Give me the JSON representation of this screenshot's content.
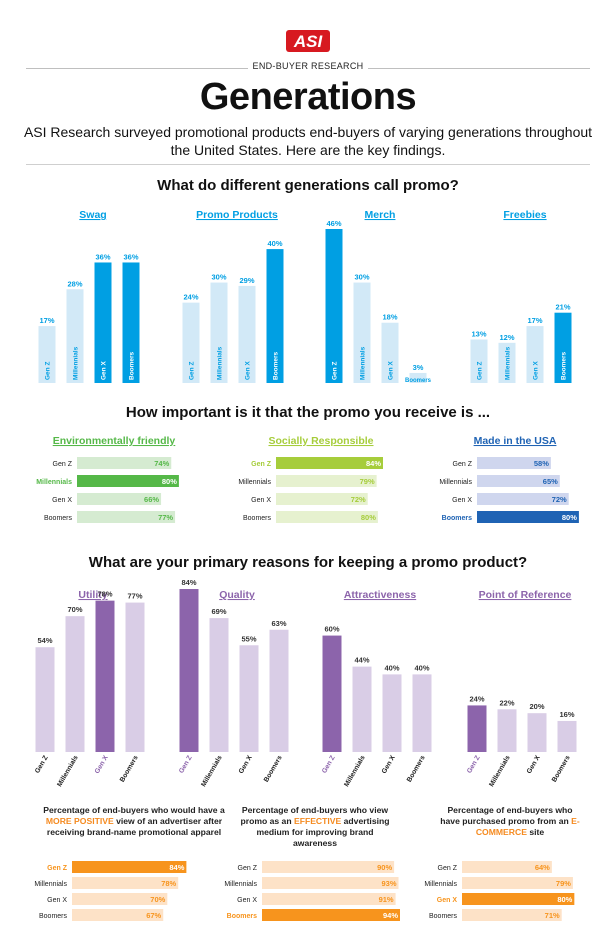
{
  "header": {
    "logo_text": "ASI",
    "eyebrow": "END-BUYER RESEARCH",
    "title": "Generations",
    "subtitle": "ASI Research surveyed promotional products end-buyers of varying generations throughout the United States. Here are the key findings."
  },
  "colors": {
    "cyan": "#009fe3",
    "cyan_light": "#d2e9f7",
    "green": "#55b848",
    "green_light": "#d5ebd1",
    "lime": "#a6cd3b",
    "lime_light": "#e6f1cf",
    "navy": "#1f63b4",
    "navy_light": "#cfd6ee",
    "purple": "#8c64ab",
    "purple_light": "#d9cde6",
    "orange": "#f7941d",
    "orange_light": "#fde2c7",
    "logo_red": "#d71920"
  },
  "chart_data": [
    {
      "type": "bar",
      "title": "What do different generations call promo?",
      "categories": [
        "Gen Z",
        "Millennials",
        "Gen X",
        "Boomers"
      ],
      "groups": [
        {
          "name": "Swag",
          "values": [
            17,
            28,
            36,
            36
          ],
          "highlight": [
            2,
            3
          ]
        },
        {
          "name": "Promo Products",
          "values": [
            24,
            30,
            29,
            40
          ],
          "highlight": [
            3
          ]
        },
        {
          "name": "Merch",
          "values": [
            46,
            30,
            18,
            3
          ],
          "highlight": [
            0
          ]
        },
        {
          "name": "Freebies",
          "values": [
            13,
            12,
            17,
            21
          ],
          "highlight": [
            3
          ]
        }
      ],
      "unit": "%",
      "ylim": [
        0,
        46
      ]
    },
    {
      "type": "bar",
      "orientation": "horizontal",
      "title": "How important is it that the promo you receive is ...",
      "categories": [
        "Gen Z",
        "Millennials",
        "Gen X",
        "Boomers"
      ],
      "groups": [
        {
          "name": "Environmentally friendly",
          "values": [
            74,
            80,
            66,
            77
          ],
          "highlight": [
            1
          ],
          "color": "green"
        },
        {
          "name": "Socially Responsible",
          "values": [
            84,
            79,
            72,
            80
          ],
          "highlight": [
            0
          ],
          "color": "lime"
        },
        {
          "name": "Made in the USA",
          "values": [
            58,
            65,
            72,
            80
          ],
          "highlight": [
            3
          ],
          "color": "navy"
        }
      ],
      "unit": "%",
      "xlim": [
        0,
        84
      ]
    },
    {
      "type": "bar",
      "title": "What are your primary reasons for keeping a promo product?",
      "categories": [
        "Gen Z",
        "Millennials",
        "Gen X",
        "Boomers"
      ],
      "groups": [
        {
          "name": "Utility",
          "values": [
            54,
            70,
            78,
            77
          ],
          "highlight": [
            2
          ]
        },
        {
          "name": "Quality",
          "values": [
            84,
            69,
            55,
            63
          ],
          "highlight": [
            0
          ]
        },
        {
          "name": "Attractiveness",
          "values": [
            60,
            44,
            40,
            40
          ],
          "highlight": [
            0
          ]
        },
        {
          "name": "Point of Reference",
          "values": [
            24,
            22,
            20,
            16
          ],
          "highlight": [
            0
          ]
        }
      ],
      "unit": "%",
      "ylim": [
        0,
        84
      ]
    },
    {
      "type": "bar",
      "orientation": "horizontal",
      "categories": [
        "Gen Z",
        "Millennials",
        "Gen X",
        "Boomers"
      ],
      "groups": [
        {
          "caption_parts": [
            "Percentage of end-buyers who would have a ",
            "MORE POSITIVE",
            " view of an advertiser after receiving brand-name promotional apparel"
          ],
          "values": [
            84,
            78,
            70,
            67
          ],
          "highlight": [
            0
          ]
        },
        {
          "caption_parts": [
            "Percentage of end-buyers who view promo as an ",
            "EFFECTIVE",
            " advertising medium for improving brand awareness"
          ],
          "values": [
            90,
            93,
            91,
            94
          ],
          "highlight": [
            3
          ]
        },
        {
          "caption_parts": [
            "Percentage of end-buyers who have purchased promo from an ",
            "E-COMMERCE",
            " site"
          ],
          "values": [
            64,
            79,
            80,
            71
          ],
          "highlight": [
            2
          ]
        }
      ],
      "unit": "%",
      "xlim": [
        0,
        94
      ]
    }
  ]
}
